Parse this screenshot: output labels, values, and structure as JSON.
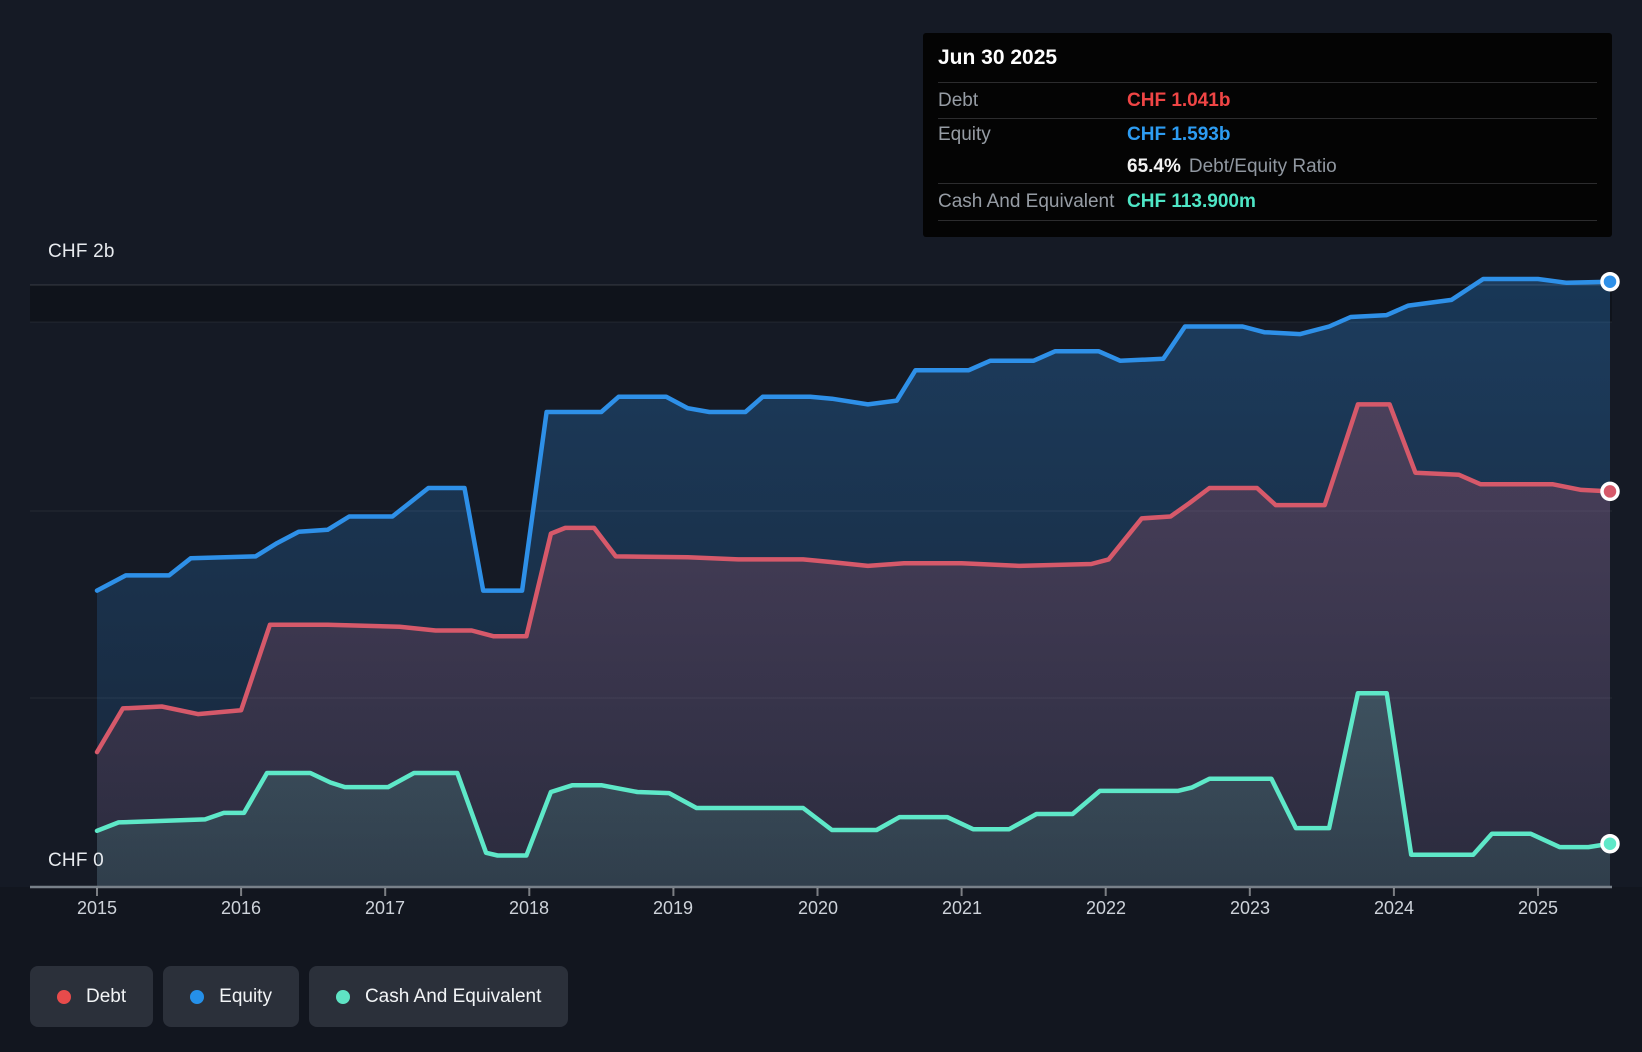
{
  "tooltip": {
    "date": "Jun 30 2025",
    "rows": [
      {
        "label": "Debt",
        "value": "CHF 1.041b",
        "color": "#ef4545"
      },
      {
        "label": "Equity",
        "value": "CHF 1.593b",
        "color": "#2d9cf2"
      },
      {
        "label": "Cash And Equivalent",
        "value": "CHF 113.900m",
        "color": "#4ee6c6"
      }
    ],
    "ratio_value": "65.4%",
    "ratio_label": "Debt/Equity Ratio"
  },
  "y_axis": {
    "top_label": "CHF 2b",
    "bottom_label": "CHF 0"
  },
  "x_axis": {
    "years": [
      "2015",
      "2016",
      "2017",
      "2018",
      "2019",
      "2020",
      "2021",
      "2022",
      "2023",
      "2024",
      "2025"
    ]
  },
  "legend": [
    {
      "label": "Debt",
      "color": "#e84b4b"
    },
    {
      "label": "Equity",
      "color": "#2590e9"
    },
    {
      "label": "Cash And Equivalent",
      "color": "#5fe3c4"
    }
  ],
  "chart_data": {
    "type": "area",
    "title": "Debt to Equity History",
    "currency": "CHF",
    "unit": "billions",
    "x_unit": "decimal year",
    "xlim": [
      2015.0,
      2025.5
    ],
    "ylim": [
      0,
      2
    ],
    "grid": true,
    "legend_position": "bottom-left",
    "last_point_date": "Jun 30 2025",
    "series": [
      {
        "name": "Debt",
        "color": "#d6596a",
        "points": [
          [
            2015.0,
            0.355
          ],
          [
            2015.18,
            0.47
          ],
          [
            2015.45,
            0.475
          ],
          [
            2015.7,
            0.455
          ],
          [
            2016.0,
            0.465
          ],
          [
            2016.2,
            0.69
          ],
          [
            2016.6,
            0.69
          ],
          [
            2017.1,
            0.685
          ],
          [
            2017.35,
            0.675
          ],
          [
            2017.6,
            0.675
          ],
          [
            2017.75,
            0.66
          ],
          [
            2017.98,
            0.66
          ],
          [
            2018.15,
            0.93
          ],
          [
            2018.25,
            0.945
          ],
          [
            2018.45,
            0.945
          ],
          [
            2018.6,
            0.87
          ],
          [
            2019.1,
            0.868
          ],
          [
            2019.45,
            0.862
          ],
          [
            2019.9,
            0.862
          ],
          [
            2020.1,
            0.855
          ],
          [
            2020.35,
            0.845
          ],
          [
            2020.6,
            0.852
          ],
          [
            2021.0,
            0.852
          ],
          [
            2021.4,
            0.845
          ],
          [
            2021.9,
            0.85
          ],
          [
            2022.02,
            0.862
          ],
          [
            2022.25,
            0.97
          ],
          [
            2022.45,
            0.975
          ],
          [
            2022.58,
            1.01
          ],
          [
            2022.72,
            1.05
          ],
          [
            2023.05,
            1.05
          ],
          [
            2023.18,
            1.005
          ],
          [
            2023.52,
            1.005
          ],
          [
            2023.75,
            1.27
          ],
          [
            2023.97,
            1.27
          ],
          [
            2024.15,
            1.09
          ],
          [
            2024.45,
            1.085
          ],
          [
            2024.6,
            1.06
          ],
          [
            2025.1,
            1.06
          ],
          [
            2025.3,
            1.045
          ],
          [
            2025.5,
            1.041
          ]
        ]
      },
      {
        "name": "Equity",
        "color": "#2e90e8",
        "points": [
          [
            2015.0,
            0.78
          ],
          [
            2015.2,
            0.82
          ],
          [
            2015.5,
            0.82
          ],
          [
            2015.65,
            0.865
          ],
          [
            2016.1,
            0.87
          ],
          [
            2016.25,
            0.905
          ],
          [
            2016.4,
            0.935
          ],
          [
            2016.6,
            0.94
          ],
          [
            2016.75,
            0.975
          ],
          [
            2017.05,
            0.975
          ],
          [
            2017.15,
            1.005
          ],
          [
            2017.3,
            1.05
          ],
          [
            2017.55,
            1.05
          ],
          [
            2017.68,
            0.78
          ],
          [
            2017.95,
            0.78
          ],
          [
            2018.12,
            1.25
          ],
          [
            2018.5,
            1.25
          ],
          [
            2018.62,
            1.29
          ],
          [
            2018.95,
            1.29
          ],
          [
            2019.1,
            1.26
          ],
          [
            2019.25,
            1.25
          ],
          [
            2019.5,
            1.25
          ],
          [
            2019.62,
            1.29
          ],
          [
            2019.95,
            1.29
          ],
          [
            2020.1,
            1.285
          ],
          [
            2020.35,
            1.27
          ],
          [
            2020.55,
            1.28
          ],
          [
            2020.68,
            1.36
          ],
          [
            2021.05,
            1.36
          ],
          [
            2021.2,
            1.385
          ],
          [
            2021.5,
            1.385
          ],
          [
            2021.65,
            1.41
          ],
          [
            2021.95,
            1.41
          ],
          [
            2022.1,
            1.385
          ],
          [
            2022.4,
            1.39
          ],
          [
            2022.55,
            1.475
          ],
          [
            2022.95,
            1.475
          ],
          [
            2023.1,
            1.46
          ],
          [
            2023.35,
            1.455
          ],
          [
            2023.55,
            1.475
          ],
          [
            2023.7,
            1.5
          ],
          [
            2023.95,
            1.505
          ],
          [
            2024.1,
            1.53
          ],
          [
            2024.4,
            1.545
          ],
          [
            2024.62,
            1.6
          ],
          [
            2025.0,
            1.6
          ],
          [
            2025.2,
            1.59
          ],
          [
            2025.5,
            1.593
          ]
        ]
      },
      {
        "name": "Cash And Equivalent",
        "color": "#5ee8c8",
        "points": [
          [
            2015.0,
            0.148
          ],
          [
            2015.15,
            0.17
          ],
          [
            2015.75,
            0.178
          ],
          [
            2015.88,
            0.195
          ],
          [
            2016.02,
            0.195
          ],
          [
            2016.18,
            0.3
          ],
          [
            2016.48,
            0.3
          ],
          [
            2016.62,
            0.275
          ],
          [
            2016.72,
            0.263
          ],
          [
            2017.02,
            0.263
          ],
          [
            2017.2,
            0.3
          ],
          [
            2017.5,
            0.3
          ],
          [
            2017.7,
            0.09
          ],
          [
            2017.78,
            0.083
          ],
          [
            2017.98,
            0.083
          ],
          [
            2018.15,
            0.25
          ],
          [
            2018.3,
            0.268
          ],
          [
            2018.5,
            0.268
          ],
          [
            2018.75,
            0.25
          ],
          [
            2018.97,
            0.247
          ],
          [
            2019.16,
            0.208
          ],
          [
            2019.9,
            0.208
          ],
          [
            2020.1,
            0.15
          ],
          [
            2020.41,
            0.15
          ],
          [
            2020.57,
            0.184
          ],
          [
            2020.9,
            0.184
          ],
          [
            2021.08,
            0.152
          ],
          [
            2021.33,
            0.152
          ],
          [
            2021.52,
            0.192
          ],
          [
            2021.77,
            0.192
          ],
          [
            2021.96,
            0.253
          ],
          [
            2022.5,
            0.253
          ],
          [
            2022.6,
            0.262
          ],
          [
            2022.72,
            0.285
          ],
          [
            2023.15,
            0.285
          ],
          [
            2023.32,
            0.155
          ],
          [
            2023.55,
            0.155
          ],
          [
            2023.75,
            0.51
          ],
          [
            2023.95,
            0.51
          ],
          [
            2024.12,
            0.085
          ],
          [
            2024.55,
            0.085
          ],
          [
            2024.68,
            0.14
          ],
          [
            2024.95,
            0.14
          ],
          [
            2025.15,
            0.105
          ],
          [
            2025.35,
            0.105
          ],
          [
            2025.5,
            0.114
          ]
        ]
      }
    ]
  }
}
